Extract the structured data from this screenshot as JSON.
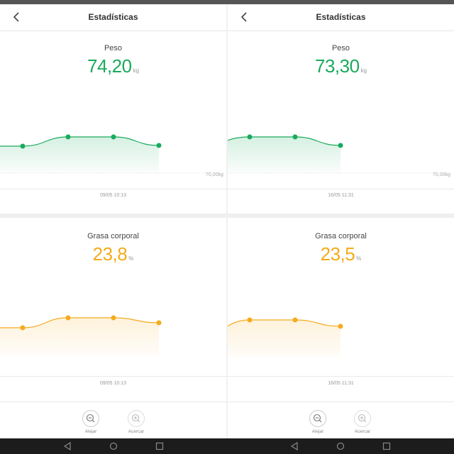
{
  "left": {
    "title": "Estadísticas",
    "weight": {
      "label": "Peso",
      "value": "74,20",
      "unit": "kg",
      "axis_label": "70,00kg",
      "date": "09/05 10:13"
    },
    "fat": {
      "label": "Grasa corporal",
      "value": "23,8",
      "unit": "%",
      "date": "09/05 10:13"
    },
    "zoom_out": "Alejar",
    "zoom_in": "Acercar"
  },
  "right": {
    "title": "Estadísticas",
    "weight": {
      "label": "Peso",
      "value": "73,30",
      "unit": "kg",
      "axis_label": "70,00kg",
      "date": "16/05 11:31"
    },
    "fat": {
      "label": "Grasa corporal",
      "value": "23,5",
      "unit": "%",
      "date": "16/05 11:31"
    },
    "zoom_out": "Alejar",
    "zoom_in": "Acercar"
  },
  "colors": {
    "weight": "#1aaa5e",
    "fat": "#f4ab1c"
  },
  "icons": {
    "back": "chevron-left-icon",
    "zoom_out": "zoom-out-icon",
    "zoom_in": "zoom-in-icon",
    "nav": [
      "back-triangle-icon",
      "home-circle-icon",
      "recents-square-icon"
    ]
  }
}
